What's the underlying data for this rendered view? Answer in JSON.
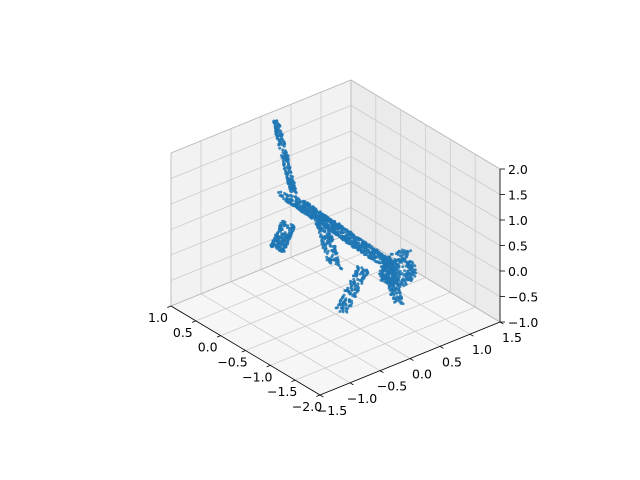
{
  "chart_data": {
    "type": "scatter",
    "projection": "3d",
    "title": "",
    "xlabel": "",
    "ylabel": "",
    "zlabel": "",
    "xlim": [
      -2.0,
      1.0
    ],
    "ylim": [
      -1.5,
      1.5
    ],
    "zlim": [
      -1.0,
      2.0
    ],
    "x_ticks": [
      "−2.0",
      "−1.5",
      "−1.0",
      "−0.5",
      "0.0",
      "0.5",
      "1.0"
    ],
    "y_ticks": [
      "−1.5",
      "−1.0",
      "−0.5",
      "0.0",
      "0.5",
      "1.0",
      "1.5"
    ],
    "z_ticks": [
      "−1.0",
      "−0.5",
      "0.0",
      "0.5",
      "1.0",
      "1.5",
      "2.0"
    ],
    "grid": true,
    "legend": "none",
    "colors": {
      "points": "#1f77b4",
      "pane_left": "#f2f2f2",
      "pane_back": "#ebebeb",
      "pane_floor": "#f6f6f6",
      "grid": "#cccccc"
    },
    "point_cloud": {
      "shape": "cat",
      "count_approx": 2000,
      "parts": [
        {
          "name": "head",
          "center": [
            -1.75,
            0.0,
            0.55
          ],
          "radius": [
            0.22,
            0.26,
            0.24
          ],
          "n": 260
        },
        {
          "name": "ears",
          "center": [
            -1.75,
            0.0,
            0.85
          ],
          "radius": [
            0.06,
            0.22,
            0.1
          ],
          "n": 40
        },
        {
          "name": "body",
          "from": [
            -1.5,
            0.0,
            0.6
          ],
          "to": [
            0.35,
            0.0,
            0.75
          ],
          "radius": 0.24,
          "n": 700
        },
        {
          "name": "front-left-leg",
          "from": [
            -1.3,
            0.2,
            0.45
          ],
          "to": [
            -1.4,
            0.3,
            -0.4
          ],
          "radius": 0.08,
          "n": 140
        },
        {
          "name": "front-right-leg",
          "from": [
            -1.3,
            -0.2,
            0.45
          ],
          "to": [
            -1.1,
            -0.4,
            -0.4
          ],
          "radius": 0.08,
          "n": 140
        },
        {
          "name": "hind-left-leg",
          "from": [
            0.15,
            0.25,
            0.5
          ],
          "to": [
            -0.25,
            0.2,
            -0.3
          ],
          "radius": 0.1,
          "n": 170
        },
        {
          "name": "hind-right-leg",
          "from": [
            0.15,
            -0.25,
            0.5
          ],
          "to": [
            0.25,
            -0.35,
            0.0
          ],
          "radius": 0.1,
          "n": 170
        },
        {
          "name": "tail",
          "from": [
            0.35,
            0.0,
            0.9
          ],
          "to": [
            0.7,
            0.0,
            2.1
          ],
          "radius": 0.05,
          "n": 180
        }
      ]
    }
  }
}
